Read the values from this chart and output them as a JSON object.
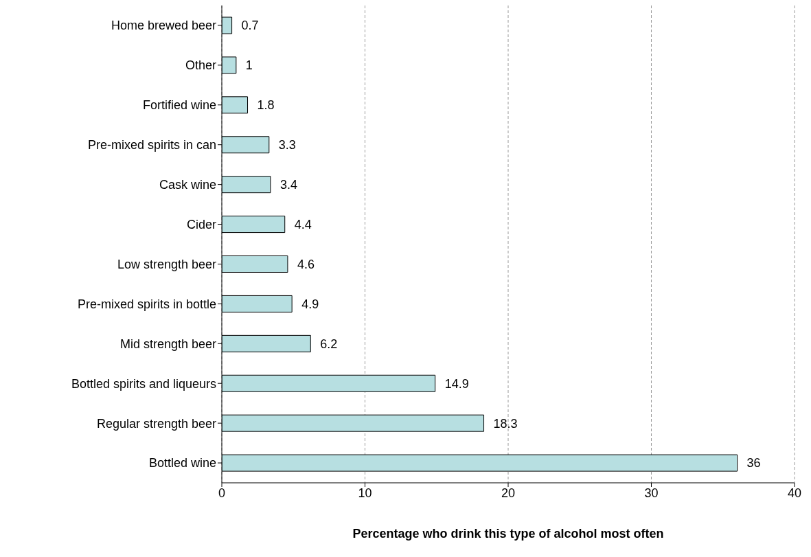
{
  "chart_data": {
    "type": "bar",
    "orientation": "horizontal",
    "xlabel": "Percentage who drink this type of alcohol most often",
    "categories": [
      "Home brewed beer",
      "Other",
      "Fortified wine",
      "Pre-mixed spirits in can",
      "Cask wine",
      "Cider",
      "Low strength beer",
      "Pre-mixed spirits in bottle",
      "Mid strength beer",
      "Bottled spirits and liqueurs",
      "Regular strength beer",
      "Bottled wine"
    ],
    "values": [
      0.7,
      1,
      1.8,
      3.3,
      3.4,
      4.4,
      4.6,
      4.9,
      6.2,
      14.9,
      18.3,
      36
    ],
    "color": "#b7dfe1",
    "xlim": [
      0,
      40
    ],
    "xticks": [
      0,
      10,
      20,
      30,
      40
    ],
    "grid": "x",
    "data_labels": true
  }
}
